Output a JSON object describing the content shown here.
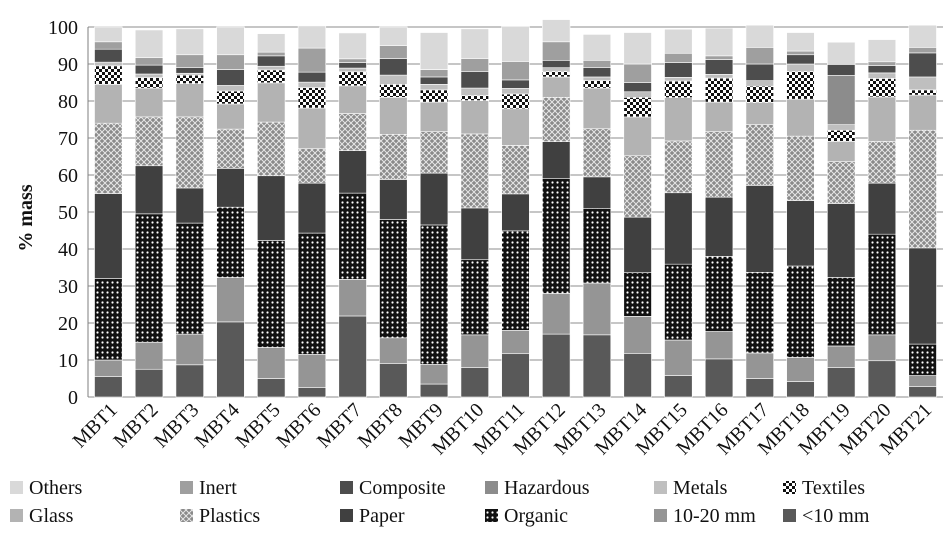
{
  "chart_data": {
    "type": "bar",
    "stacked": true,
    "title": "",
    "xlabel": "",
    "ylabel": "% mass",
    "ylim": [
      0,
      100
    ],
    "yticks": [
      0,
      10,
      20,
      30,
      40,
      50,
      60,
      70,
      80,
      90,
      100
    ],
    "grid": true,
    "legend_position": "bottom",
    "categories": [
      "MBT1",
      "MBT2",
      "MBT3",
      "MBT4",
      "MBT5",
      "MBT6",
      "MBT7",
      "MBT8",
      "MBT9",
      "MBT10",
      "MBT11",
      "MBT12",
      "MBT13",
      "MBT14",
      "MBT15",
      "MBT16",
      "MBT17",
      "MBT18",
      "MBT19",
      "MBT20",
      "MBT21"
    ],
    "series": [
      {
        "name": "<10 mm",
        "color": "#595959",
        "pattern": "solid",
        "values": [
          5.5,
          7.5,
          8.7,
          20.3,
          5.0,
          2.6,
          21.9,
          9.0,
          3.5,
          8.0,
          11.7,
          17.0,
          16.8,
          11.8,
          5.8,
          10.3,
          5.0,
          4.2,
          8.0,
          9.8,
          2.8
        ]
      },
      {
        "name": "10-20 mm",
        "color": "#959595",
        "pattern": "solid",
        "values": [
          4.5,
          7.3,
          8.3,
          12.0,
          8.4,
          8.9,
          9.9,
          7.0,
          5.3,
          8.8,
          6.3,
          11.0,
          14.0,
          10.0,
          9.6,
          7.4,
          6.9,
          6.5,
          5.8,
          7.0,
          3.0
        ]
      },
      {
        "name": "Organic",
        "color": "#1a1a1a",
        "pattern": "dots",
        "values": [
          22.0,
          34.7,
          30.0,
          19.0,
          28.9,
          32.8,
          23.3,
          32.0,
          37.7,
          20.3,
          26.9,
          31.0,
          20.2,
          11.8,
          20.5,
          20.3,
          21.8,
          24.7,
          18.5,
          27.2,
          8.5
        ]
      },
      {
        "name": "Paper",
        "color": "#404040",
        "pattern": "solid",
        "values": [
          23.0,
          13.0,
          9.5,
          10.5,
          17.5,
          13.5,
          11.5,
          10.8,
          14.0,
          14.0,
          10.0,
          10.0,
          8.5,
          15.0,
          19.3,
          16.0,
          23.5,
          17.7,
          20.0,
          13.8,
          26.0
        ]
      },
      {
        "name": "Plastics",
        "color": "#7f7f7f",
        "pattern": "hatch",
        "values": [
          19.0,
          13.2,
          19.2,
          10.6,
          14.5,
          9.3,
          10.0,
          12.2,
          11.2,
          20.0,
          13.1,
          12.0,
          13.0,
          16.6,
          14.0,
          17.7,
          16.4,
          17.4,
          11.3,
          11.3,
          31.8
        ]
      },
      {
        "name": "Glass",
        "color": "#b3b3b3",
        "pattern": "solid",
        "values": [
          10.5,
          7.8,
          9.0,
          6.8,
          10.6,
          11.0,
          7.5,
          10.0,
          8.0,
          9.0,
          9.9,
          5.5,
          11.0,
          10.5,
          11.7,
          8.0,
          6.0,
          10.0,
          5.5,
          12.0,
          9.5
        ]
      },
      {
        "name": "Textiles",
        "color": "#1a1a1a",
        "pattern": "checker",
        "values": [
          5.0,
          2.8,
          2.3,
          3.5,
          3.5,
          5.5,
          3.8,
          3.5,
          3.3,
          1.4,
          4.0,
          1.5,
          2.0,
          5.3,
          4.5,
          6.5,
          4.4,
          7.5,
          3.0,
          5.0,
          1.4
        ]
      },
      {
        "name": "Metals",
        "color": "#bfbfbf",
        "pattern": "solid",
        "values": [
          1.0,
          1.0,
          0.5,
          1.5,
          1.0,
          1.5,
          1.0,
          2.5,
          1.5,
          2.0,
          1.5,
          1.0,
          1.0,
          1.5,
          1.0,
          1.0,
          1.5,
          2.0,
          1.5,
          1.5,
          3.5
        ]
      },
      {
        "name": "Hazardous",
        "color": "#8c8c8c",
        "pattern": "solid",
        "values": [
          0.0,
          0.0,
          0.0,
          0.0,
          0.0,
          0.0,
          0.0,
          0.0,
          0.0,
          0.0,
          0.0,
          0.0,
          0.0,
          0.0,
          0.0,
          0.0,
          0.0,
          0.0,
          13.3,
          0.0,
          0.0
        ]
      },
      {
        "name": "Composite",
        "color": "#4d4d4d",
        "pattern": "solid",
        "values": [
          3.5,
          2.4,
          1.5,
          4.3,
          2.8,
          2.7,
          1.5,
          4.5,
          2.0,
          4.5,
          2.3,
          2.0,
          2.5,
          2.5,
          4.0,
          4.0,
          4.5,
          2.5,
          3.0,
          2.0,
          6.5
        ]
      },
      {
        "name": "Inert",
        "color": "#9f9f9f",
        "pattern": "solid",
        "values": [
          2.0,
          2.0,
          3.5,
          4.0,
          1.0,
          6.5,
          1.0,
          3.5,
          2.0,
          3.5,
          5.0,
          5.0,
          2.0,
          5.0,
          2.5,
          1.0,
          4.5,
          1.0,
          0.0,
          1.0,
          1.5
        ]
      },
      {
        "name": "Others",
        "color": "#d9d9d9",
        "pattern": "solid",
        "values": [
          4.0,
          7.5,
          7.0,
          7.5,
          5.0,
          6.0,
          7.0,
          5.0,
          10.0,
          8.0,
          9.5,
          6.0,
          7.0,
          8.5,
          6.5,
          7.5,
          6.0,
          5.0,
          6.0,
          6.0,
          6.0
        ]
      }
    ],
    "legend_order": [
      "Others",
      "Inert",
      "Composite",
      "Hazardous",
      "Metals",
      "Textiles",
      "Glass",
      "Plastics",
      "Paper",
      "Organic",
      "10-20 mm",
      "<10 mm"
    ]
  }
}
